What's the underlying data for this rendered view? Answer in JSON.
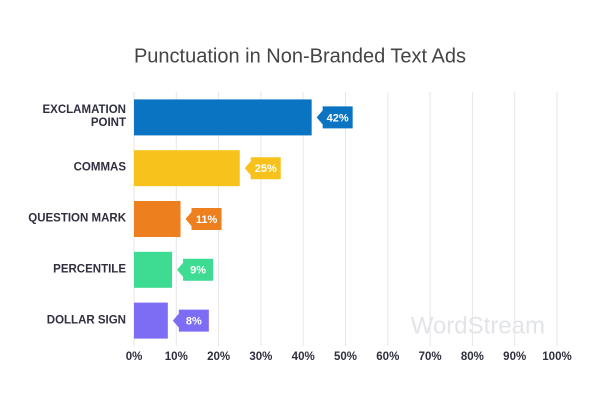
{
  "chart_data": {
    "type": "hbar",
    "title": "Punctuation in Non-Branded Text Ads",
    "categories": [
      "EXCLAMATION POINT",
      "COMMAS",
      "QUESTION MARK",
      "PERCENTILE",
      "DOLLAR SIGN"
    ],
    "values": [
      42,
      25,
      11,
      9,
      8
    ],
    "value_labels": [
      "42%",
      "25%",
      "11%",
      "9%",
      "8%"
    ],
    "colors": [
      "#0a73c2",
      "#f7c21c",
      "#ee7f1f",
      "#3ddc92",
      "#7d6df5"
    ],
    "xlim": [
      0,
      100
    ],
    "xticks": [
      {
        "value": 0,
        "label": "0%"
      },
      {
        "value": 10,
        "label": "10%"
      },
      {
        "value": 20,
        "label": "20%"
      },
      {
        "value": 30,
        "label": "30%"
      },
      {
        "value": 40,
        "label": "40%"
      },
      {
        "value": 50,
        "label": "50%"
      },
      {
        "value": 60,
        "label": "60%"
      },
      {
        "value": 70,
        "label": "70%"
      },
      {
        "value": 80,
        "label": "80%"
      },
      {
        "value": 90,
        "label": "90%"
      },
      {
        "value": 100,
        "label": "100%"
      }
    ],
    "grid": true,
    "watermark": "WordStream"
  }
}
